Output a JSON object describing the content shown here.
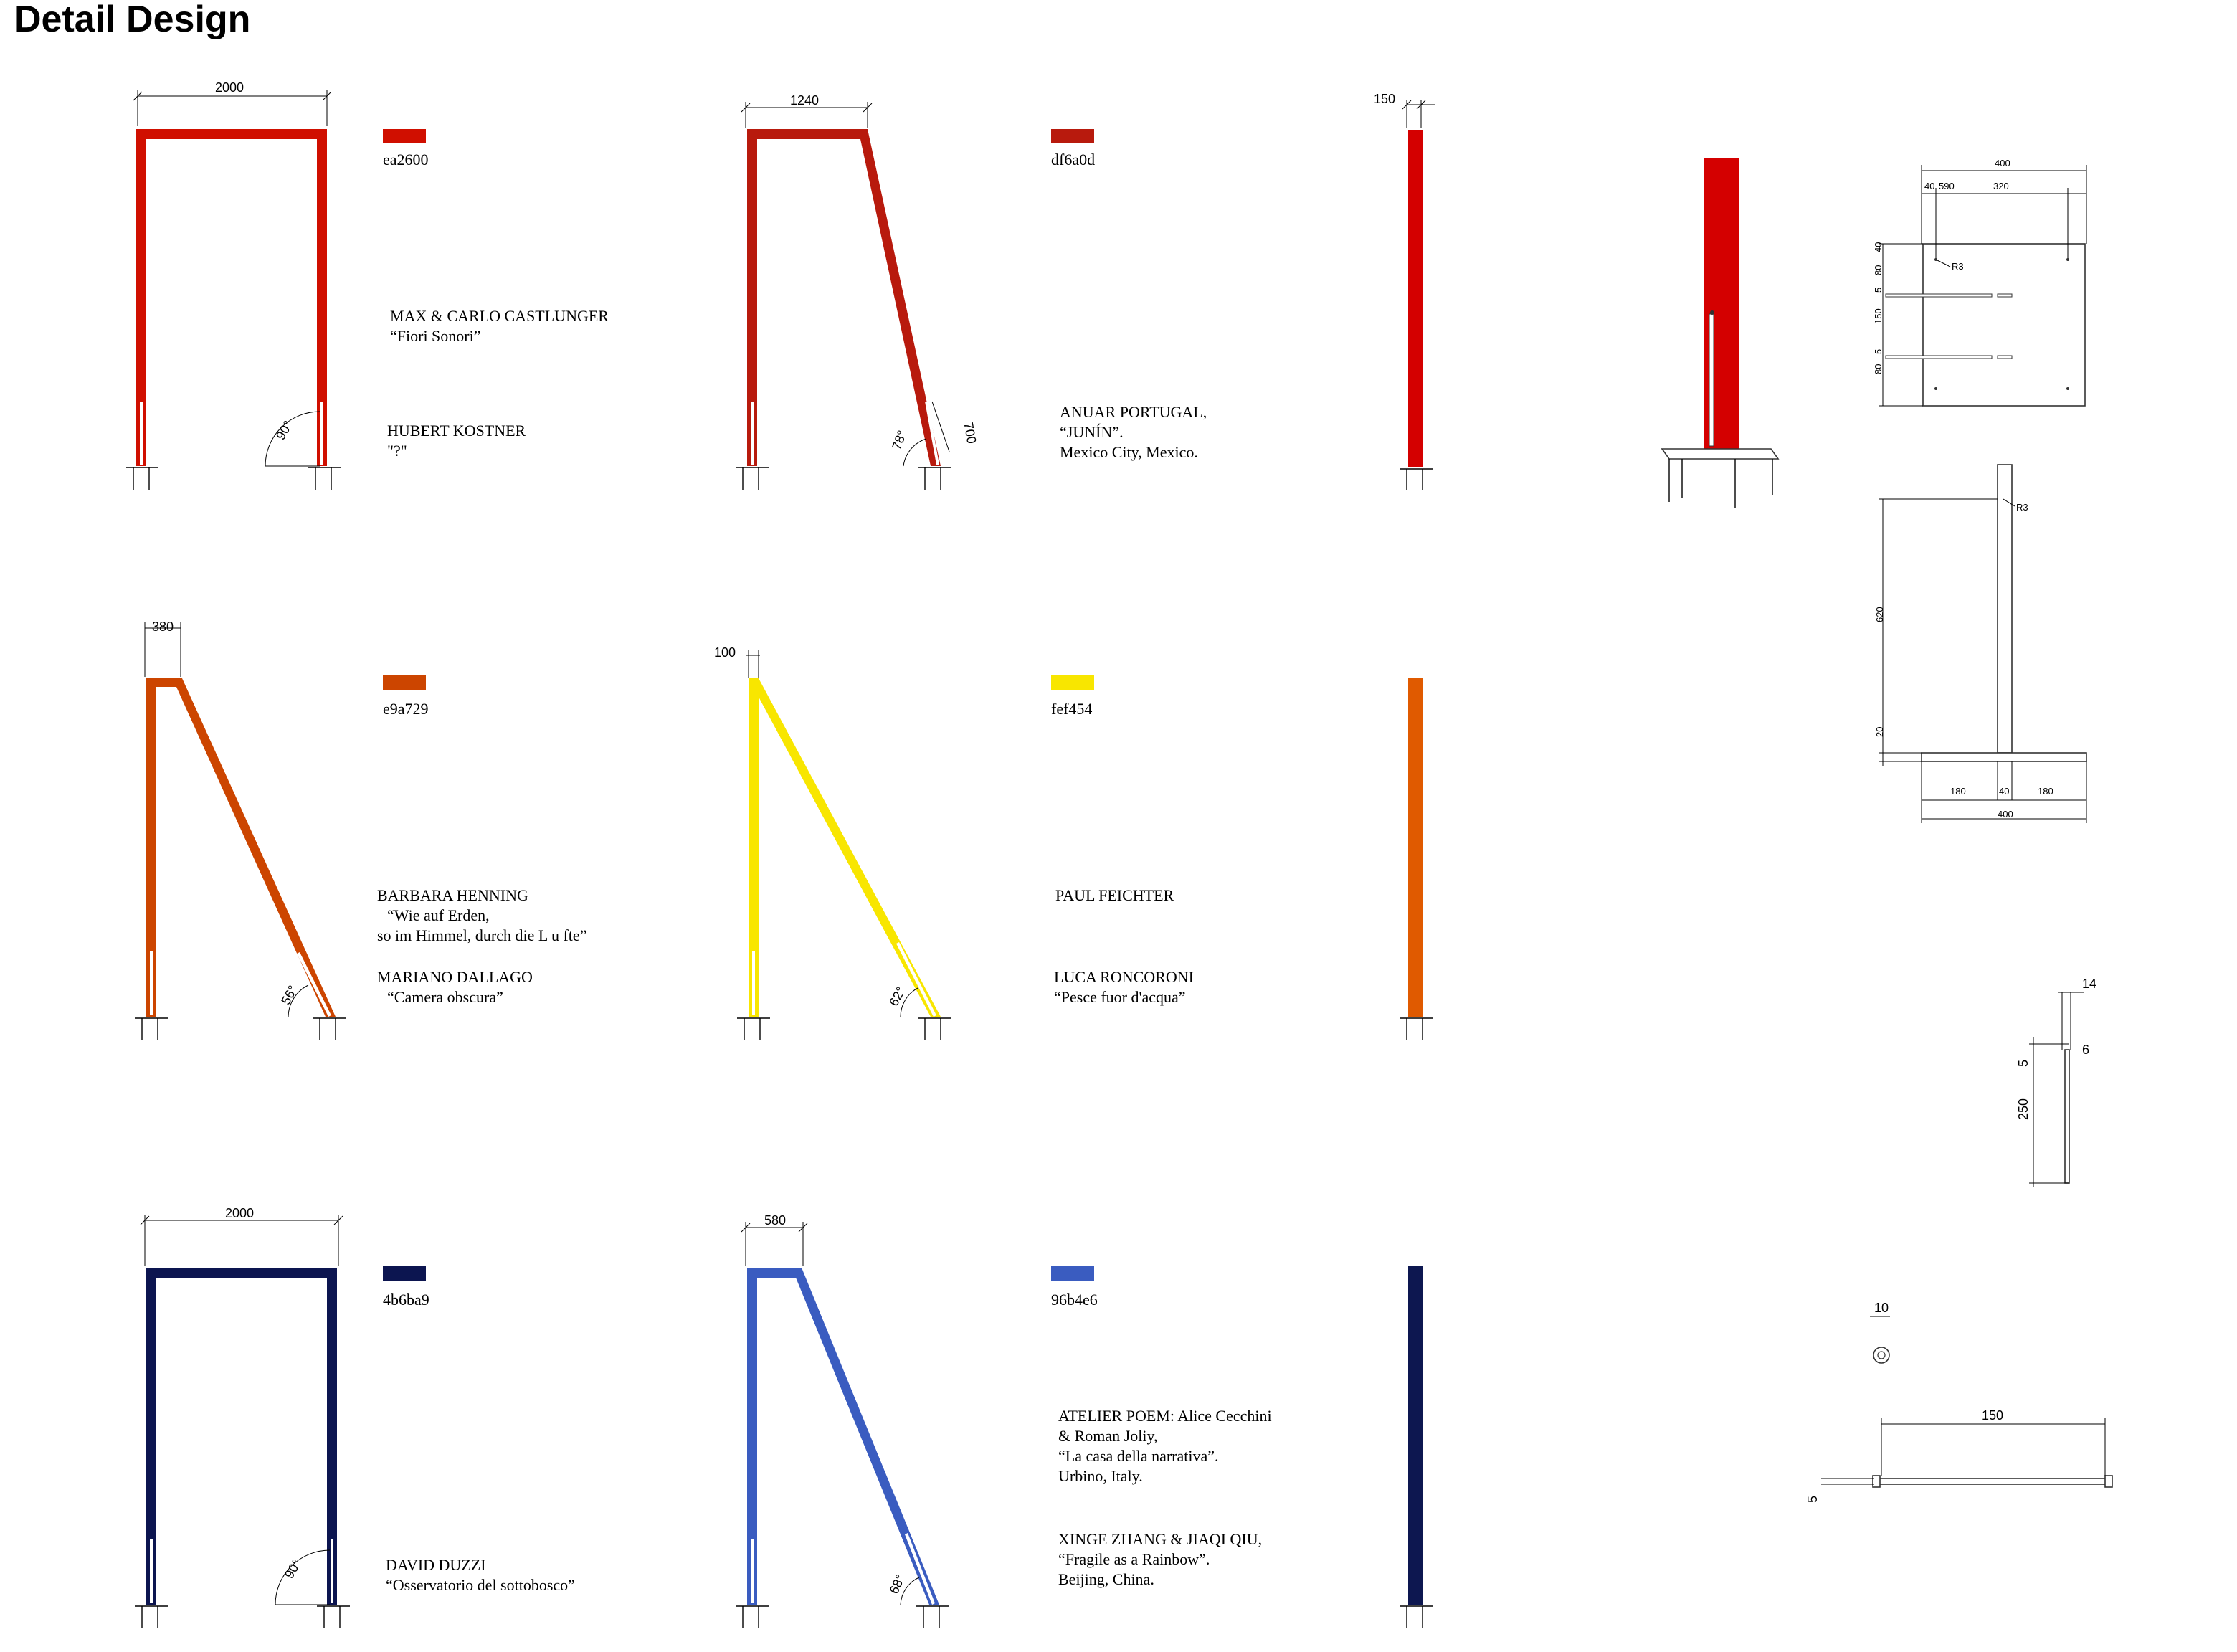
{
  "title": "Detail Design",
  "colors": {
    "c1": "#ea2600",
    "c2": "#b01a0d",
    "c3": "#d2460a",
    "c4": "#fef454",
    "c5": "#0d1750",
    "c6": "#3a5cc0",
    "c7": "#e05a00",
    "c8": "#d40000"
  },
  "swatches": [
    {
      "hex": "ea2600",
      "color": "#d00f00"
    },
    {
      "hex": "df6a0d",
      "color": "#b81a0d"
    },
    {
      "hex": "e9a729",
      "color": "#cc4500"
    },
    {
      "hex": "fef454",
      "color": "#f8e600"
    },
    {
      "hex": "4b6ba9",
      "color": "#0c1550"
    },
    {
      "hex": "96b4e6",
      "color": "#3a5cc0"
    }
  ],
  "dims": {
    "d2000a": "2000",
    "d1240": "1240",
    "d150": "150",
    "d380": "380",
    "d100": "100",
    "d2000b": "2000",
    "d580": "580",
    "a90a": "90°",
    "a78": "78°",
    "l700": "700",
    "a56": "56°",
    "a62": "62°",
    "a90b": "90°",
    "a68": "68°"
  },
  "credits": {
    "c1a": "MAX & CARLO CASTLUNGER",
    "c1b": "“Fiori Sonori”",
    "c1c": "HUBERT KOSTNER",
    "c1d": "\"?\"",
    "c2a": "ANUAR PORTUGAL,",
    "c2b": "“JUNÍN”.",
    "c2c": "Mexico City, Mexico.",
    "c3a": "BARBARA HENNING",
    "c3b": "“Wie auf Erden,",
    "c3c": "so im Himmel, durch die L u fte”",
    "c3d": "MARIANO DALLAGO",
    "c3e": "“Camera obscura”",
    "c4a": "PAUL FEICHTER",
    "c4b": "LUCA RONCORONI",
    "c4c": "“Pesce fuor d'acqua”",
    "c5a": "DAVID DUZZI",
    "c5b": "“Osservatorio del sottobosco”",
    "c6a": "ATELIER POEM: Alice Cecchini",
    "c6b": "& Roman Joliy,",
    "c6c": "“La casa della narrativa”.",
    "c6d": "Urbino, Italy.",
    "c6e": "XINGE ZHANG & JIAQI QIU,",
    "c6f": "“Fragile as a Rainbow”.",
    "c6g": "Beijing, China."
  },
  "plate_dims": {
    "p400": "400",
    "p40": "40",
    "p590": "590",
    "p320": "320",
    "r3": "R3",
    "v40": "40",
    "v80": "80",
    "v5": "5",
    "v150": "150",
    "v5b": "5",
    "v80b": "80"
  },
  "elev_dims": {
    "r3": "R3",
    "v620": "620",
    "v20": "20",
    "h180a": "180",
    "h40": "40",
    "h180b": "180",
    "h400": "400"
  },
  "clip_dims": {
    "w14": "14",
    "v5": "5",
    "w6": "6",
    "v250": "250"
  },
  "bolt_dims": {
    "d10": "10",
    "l150": "150",
    "v5": "5"
  }
}
